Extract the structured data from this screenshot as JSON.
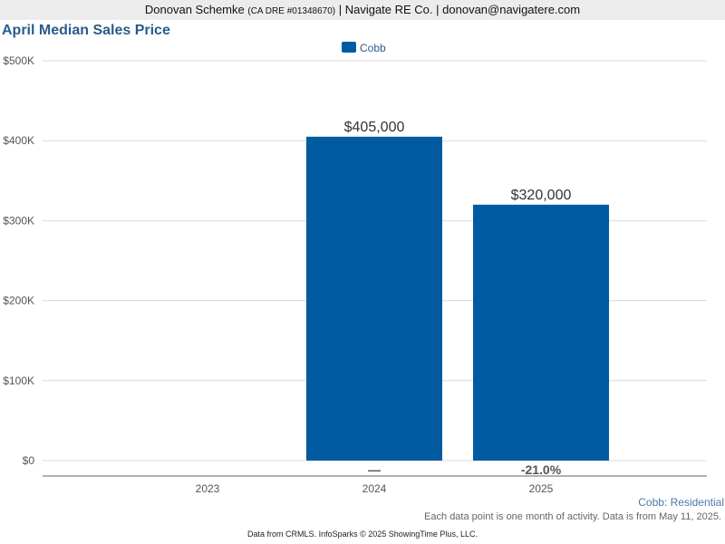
{
  "header": {
    "agent_name": "Donovan Schemke",
    "license": "(CA DRE #01348670)",
    "company": "| Navigate RE Co.",
    "email": "| donovan@navigatere.com"
  },
  "chart_data": {
    "type": "bar",
    "title": "April Median Sales Price",
    "categories": [
      "2023",
      "2024",
      "2025"
    ],
    "series": [
      {
        "name": "Cobb",
        "values": [
          null,
          405000,
          320000
        ],
        "color": "#005ba1"
      }
    ],
    "value_labels": [
      "",
      "$405,000",
      "$320,000"
    ],
    "change_labels": [
      "",
      "—",
      "-21.0%"
    ],
    "ylim": [
      0,
      500000
    ],
    "y_ticks": [
      0,
      100000,
      200000,
      300000,
      400000,
      500000
    ],
    "y_tick_labels": [
      "$0",
      "$100K",
      "$200K",
      "$300K",
      "$400K",
      "$500K"
    ],
    "grid": true,
    "legend_position": "top-center",
    "subtitle": "Cobb: Residential",
    "xlabel": "",
    "ylabel": ""
  },
  "footer": {
    "note": "Each data point is one month of activity. Data is from May 11, 2025.",
    "credit": "Data from CRMLS. InfoSparks © 2025 ShowingTime Plus, LLC."
  }
}
